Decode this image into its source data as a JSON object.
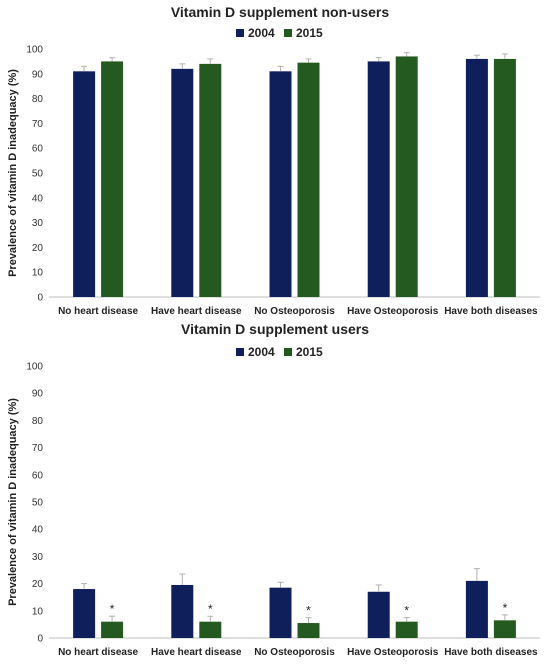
{
  "colors": {
    "2004": "#0f1f5c",
    "2015": "#245a1f",
    "error": "#b0b0b0",
    "axis": "#bfbfbf"
  },
  "chart_data": [
    {
      "type": "bar",
      "title": "Vitamin D supplement non-users",
      "ylabel": "Prevalence of vitamin D inadequacy (%)",
      "xlabel": "",
      "ylim": [
        0,
        100
      ],
      "yticks": [
        0,
        10,
        20,
        30,
        40,
        50,
        60,
        70,
        80,
        90,
        100
      ],
      "legend_position": "top",
      "grid": false,
      "categories": [
        "No heart disease",
        "Have heart disease",
        "No Osteoporosis",
        "Have Osteoporosis",
        "Have both diseases"
      ],
      "series": [
        {
          "name": "2004",
          "values": [
            91,
            92,
            91,
            95,
            96
          ],
          "errors": [
            2,
            2,
            2,
            1.5,
            1.5
          ]
        },
        {
          "name": "2015",
          "values": [
            95,
            94,
            94.5,
            97,
            96
          ],
          "errors": [
            1.5,
            2,
            1.5,
            1.5,
            2
          ]
        }
      ],
      "annotations": []
    },
    {
      "type": "bar",
      "title": "Vitamin D supplement users",
      "ylabel": "Prevalence of vitamin D inadequacy (%)",
      "xlabel": "",
      "ylim": [
        0,
        100
      ],
      "yticks": [
        0,
        10,
        20,
        30,
        40,
        50,
        60,
        70,
        80,
        90,
        100
      ],
      "legend_position": "top",
      "grid": false,
      "categories": [
        "No heart disease",
        "Have heart disease",
        "No Osteoporosis",
        "Have Osteoporosis",
        "Have both diseases"
      ],
      "series": [
        {
          "name": "2004",
          "values": [
            18,
            19.5,
            18.5,
            17,
            21
          ],
          "errors": [
            2,
            4,
            2,
            2.5,
            4.5
          ]
        },
        {
          "name": "2015",
          "values": [
            6,
            6,
            5.5,
            6,
            6.5
          ],
          "errors": [
            2,
            2,
            2,
            1.5,
            2
          ]
        }
      ],
      "annotations": [
        {
          "text": "*",
          "series": "2015",
          "category": "No heart disease"
        },
        {
          "text": "*",
          "series": "2015",
          "category": "Have heart disease"
        },
        {
          "text": "*",
          "series": "2015",
          "category": "No Osteoporosis"
        },
        {
          "text": "*",
          "series": "2015",
          "category": "Have Osteoporosis"
        },
        {
          "text": "*",
          "series": "2015",
          "category": "Have both diseases"
        }
      ]
    }
  ]
}
